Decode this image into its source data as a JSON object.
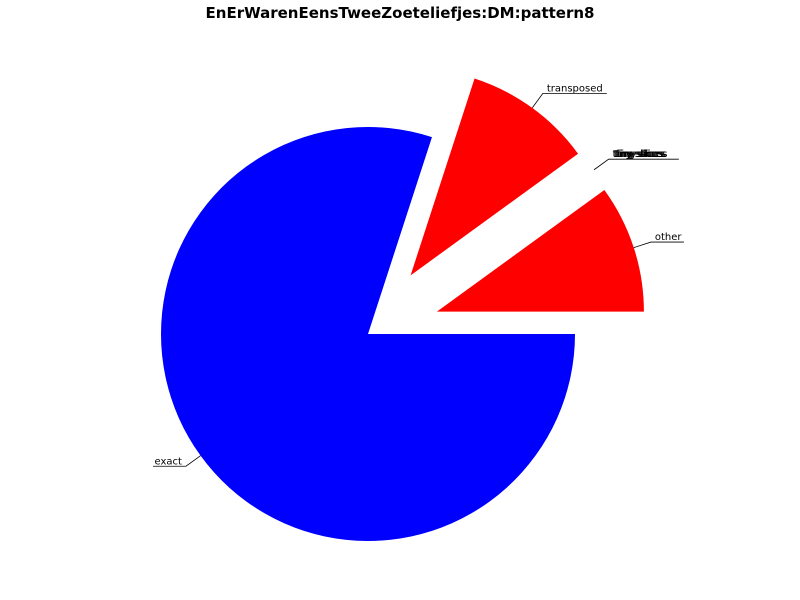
{
  "chart_data": {
    "type": "pie",
    "title": "EnErWarenEensTweeZoeteliefjes:DM:pattern8",
    "slices": [
      {
        "label": "other",
        "value": 0.1,
        "color": "#ff0000",
        "exploded": true
      },
      {
        "label": "tiny-slices",
        "value": 0.0,
        "color": "#ff0000",
        "exploded": true
      },
      {
        "label": "transposed",
        "value": 0.1,
        "color": "#ff0000",
        "exploded": true
      },
      {
        "label": "exact",
        "value": 0.8,
        "color": "#0000ff",
        "exploded": false
      }
    ],
    "overlapping_labels_note": "",
    "start_angle_deg": 0,
    "direction": "counterclockwise"
  }
}
